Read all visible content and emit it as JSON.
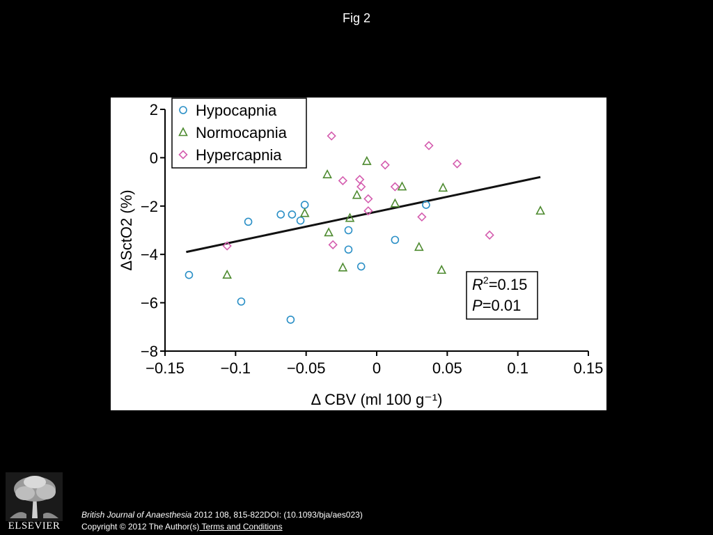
{
  "figure": {
    "title": "Fig 2"
  },
  "chart_data": {
    "type": "scatter",
    "xlabel": "Δ CBV (ml 100 g⁻¹)",
    "ylabel": "ΔSctO2 (%)",
    "xlim": [
      -0.15,
      0.15
    ],
    "ylim": [
      -8,
      2
    ],
    "xticks": [
      -0.15,
      -0.1,
      -0.05,
      0,
      0.05,
      0.1,
      0.15
    ],
    "xtick_labels": [
      "−0.15",
      "−0.1",
      "−0.05",
      "0",
      "0.05",
      "0.1",
      "0.15"
    ],
    "yticks": [
      -8,
      -6,
      -4,
      -2,
      0,
      2
    ],
    "ytick_labels": [
      "−8",
      "−6",
      "−4",
      "−2",
      "0",
      "2"
    ],
    "grid": false,
    "legend_position": "top-left",
    "series": [
      {
        "name": "Hypocapnia",
        "marker": "circle",
        "color": "#2a8fc6",
        "x": [
          -0.133,
          -0.096,
          -0.091,
          -0.068,
          -0.06,
          -0.054,
          -0.051,
          -0.061,
          -0.02,
          -0.02,
          -0.011,
          0.013,
          0.035
        ],
        "y": [
          -4.85,
          -5.95,
          -2.65,
          -2.35,
          -2.35,
          -2.6,
          -1.95,
          -6.7,
          -3.0,
          -3.8,
          -4.5,
          -3.4,
          -1.95
        ]
      },
      {
        "name": "Normocapnia",
        "marker": "triangle",
        "color": "#4d8a2f",
        "x": [
          -0.106,
          -0.051,
          -0.035,
          -0.034,
          -0.024,
          -0.019,
          -0.014,
          -0.007,
          0.013,
          0.018,
          0.03,
          0.046,
          0.047,
          0.116
        ],
        "y": [
          -4.85,
          -2.3,
          -0.7,
          -3.1,
          -4.55,
          -2.5,
          -1.55,
          -0.15,
          -1.9,
          -1.2,
          -3.7,
          -4.65,
          -1.25,
          -2.2
        ]
      },
      {
        "name": "Hypercapnia",
        "marker": "diamond",
        "color": "#d45cae",
        "x": [
          -0.106,
          -0.032,
          -0.031,
          -0.024,
          -0.012,
          -0.011,
          -0.006,
          -0.006,
          0.006,
          0.013,
          0.032,
          0.037,
          0.057,
          0.08
        ],
        "y": [
          -3.65,
          0.9,
          -3.6,
          -0.95,
          -0.9,
          -1.2,
          -1.7,
          -2.2,
          -0.3,
          -1.2,
          -2.45,
          0.5,
          -0.25,
          -3.2
        ]
      }
    ],
    "regression_line": {
      "x": [
        -0.135,
        0.116
      ],
      "y": [
        -3.9,
        -0.8
      ]
    },
    "annotation": {
      "r2_label": "R",
      "r2_sup": "2",
      "r2_value": "=0.15",
      "p_label": "P",
      "p_value": "=0.01"
    }
  },
  "footer": {
    "publisher": "ELSEVIER",
    "journal": "British Journal of Anaesthesia",
    "citation_rest": " 2012 108, 815-822DOI: (10.1093/bja/aes023)",
    "copyright": "Copyright © 2012 The Author(s)",
    "terms_link": " Terms and Conditions"
  }
}
